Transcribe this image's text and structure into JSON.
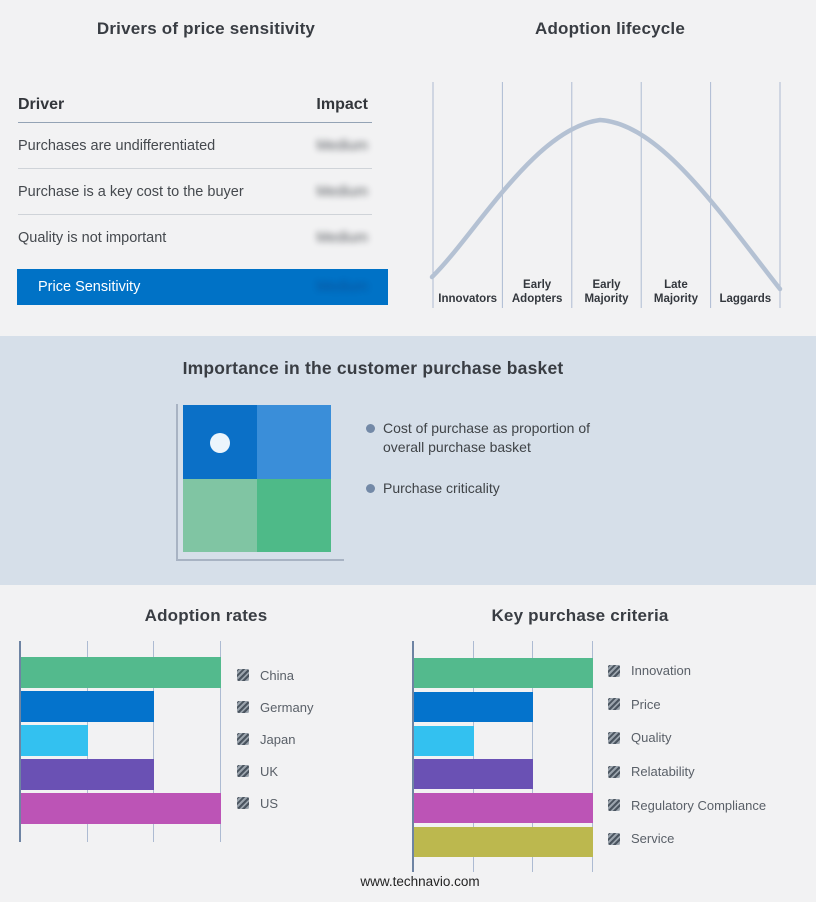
{
  "chart_data": [
    {
      "type": "table",
      "title": "Drivers of price sensitivity",
      "columns": [
        "Driver",
        "Impact"
      ],
      "rows": [
        [
          "Purchases are undifferentiated",
          "Medium"
        ],
        [
          "Purchase is a key cost to the buyer",
          "Medium"
        ],
        [
          "Quality is not important",
          "Medium"
        ]
      ],
      "highlight_row": [
        "Price Sensitivity",
        "Medium"
      ],
      "impact_values_blurred": true
    },
    {
      "type": "line",
      "title": "Adoption lifecycle",
      "shape": "bell curve",
      "categories": [
        "Innovators",
        "Early Adopters",
        "Early Majority",
        "Late Majority",
        "Laggards"
      ],
      "line_color": "#b4c1d3",
      "grid": true
    },
    {
      "type": "heatmap",
      "title": "Importance in the customer purchase basket",
      "quadrant_colors": {
        "top_left": "#0b70c7",
        "top_right": "#3a8ed9",
        "bottom_left": "#80c5a3",
        "bottom_right": "#4eba88"
      },
      "marker_quadrant": "top_left",
      "bullets": [
        "Cost of purchase as proportion of overall purchase basket",
        "Purchase criticality"
      ]
    },
    {
      "type": "bar",
      "title": "Adoption rates",
      "categories": [
        "China",
        "Germany",
        "Japan",
        "UK",
        "US"
      ],
      "values": [
        3,
        2,
        1,
        2,
        3
      ],
      "xlim": [
        0,
        3
      ],
      "bar_colors": [
        "#53ba8d",
        "#0473cc",
        "#33c1f0",
        "#6a51b4",
        "#bc54b6"
      ],
      "legend_position": "right",
      "grid": true
    },
    {
      "type": "bar",
      "title": "Key purchase criteria",
      "categories": [
        "Innovation",
        "Price",
        "Quality",
        "Relatability",
        "Regulatory Compliance",
        "Service"
      ],
      "values": [
        3,
        2,
        1,
        2,
        3,
        3
      ],
      "xlim": [
        0,
        3
      ],
      "bar_colors": [
        "#53ba8d",
        "#0473cc",
        "#33c1f0",
        "#6a51b4",
        "#bc54b6",
        "#bcb84e"
      ],
      "legend_position": "right",
      "grid": true
    }
  ],
  "footer": {
    "text": "www.technavio.com"
  },
  "colors": {
    "accent_blue": "#0072c6",
    "page_bg": "#f2f2f3",
    "band_bg": "#d6dfe9",
    "curve": "#b4c1d3",
    "gridline": "#adbbd2",
    "axis": "#6e84a3"
  }
}
